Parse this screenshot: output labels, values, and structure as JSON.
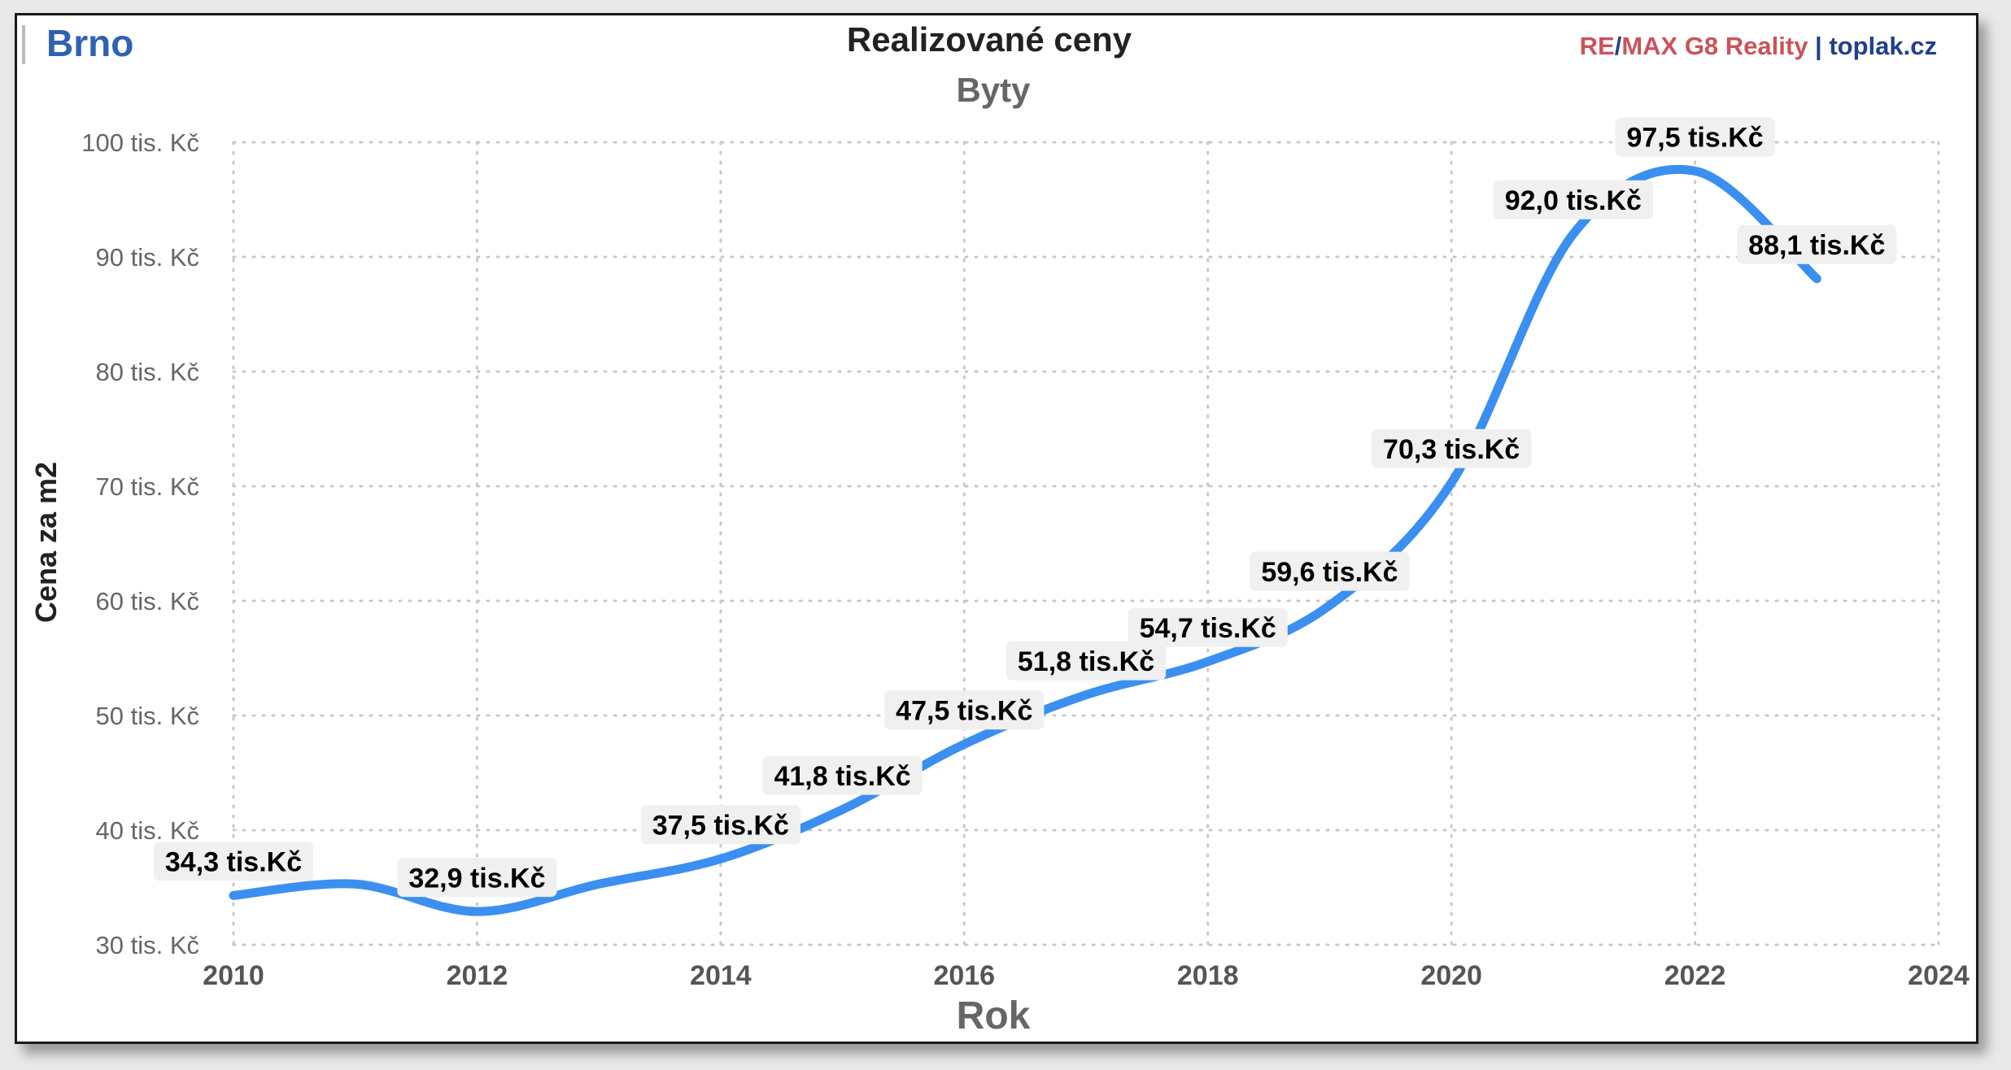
{
  "header": {
    "city": "Brno",
    "title": "Realizované ceny",
    "subtitle": "Byty",
    "brand": {
      "part_re": "RE",
      "part_slash": "/",
      "part_max": "MAX G8 Reality",
      "part_sep": " | ",
      "part_site": "toplak.cz"
    }
  },
  "colors": {
    "line": "#3b8ff0",
    "city": "#2f62b3",
    "brand_red": "#c8545a",
    "brand_blue": "#1f3f8f",
    "label_bg": "#f0f0f0",
    "grid": "#c8c8c8"
  },
  "chart_data": {
    "type": "line",
    "title": "Realizované ceny",
    "subtitle": "Byty",
    "xlabel": "Rok",
    "ylabel": "Cena za m2",
    "xlim": [
      2010,
      2024
    ],
    "ylim": [
      30,
      100
    ],
    "x_ticks": [
      2010,
      2012,
      2014,
      2016,
      2018,
      2020,
      2022,
      2024
    ],
    "x_tick_labels": [
      "2010",
      "2012",
      "2014",
      "2016",
      "2018",
      "2020",
      "2022",
      "2024"
    ],
    "y_ticks": [
      30,
      40,
      50,
      60,
      70,
      80,
      90,
      100
    ],
    "y_tick_labels": [
      "30 tis. Kč",
      "40 tis. Kč",
      "50 tis. Kč",
      "60 tis. Kč",
      "70 tis. Kč",
      "80 tis. Kč",
      "90 tis. Kč",
      "100 tis. Kč"
    ],
    "grid": true,
    "series": [
      {
        "x": [
          2010,
          2011,
          2012,
          2013,
          2014,
          2015,
          2016,
          2017,
          2018,
          2019,
          2020,
          2021,
          2022,
          2023
        ],
        "values": [
          34.3,
          35.3,
          32.9,
          35.3,
          37.5,
          41.8,
          47.5,
          51.8,
          54.7,
          59.6,
          70.3,
          92.0,
          97.5,
          88.1
        ],
        "labels": [
          {
            "x": 2010,
            "value": 34.3,
            "text": "34,3 tis.Kč"
          },
          {
            "x": 2012,
            "value": 32.9,
            "text": "32,9 tis.Kč"
          },
          {
            "x": 2014,
            "value": 37.5,
            "text": "37,5 tis.Kč"
          },
          {
            "x": 2015,
            "value": 41.8,
            "text": "41,8 tis.Kč"
          },
          {
            "x": 2016,
            "value": 47.5,
            "text": "47,5 tis.Kč"
          },
          {
            "x": 2017,
            "value": 51.8,
            "text": "51,8 tis.Kč"
          },
          {
            "x": 2018,
            "value": 54.7,
            "text": "54,7 tis.Kč"
          },
          {
            "x": 2019,
            "value": 59.6,
            "text": "59,6 tis.Kč"
          },
          {
            "x": 2020,
            "value": 70.3,
            "text": "70,3 tis.Kč"
          },
          {
            "x": 2021,
            "value": 92.0,
            "text": "92,0 tis.Kč"
          },
          {
            "x": 2022,
            "value": 97.5,
            "text": "97,5 tis.Kč"
          },
          {
            "x": 2023,
            "value": 88.1,
            "text": "88,1 tis.Kč"
          }
        ]
      }
    ]
  }
}
